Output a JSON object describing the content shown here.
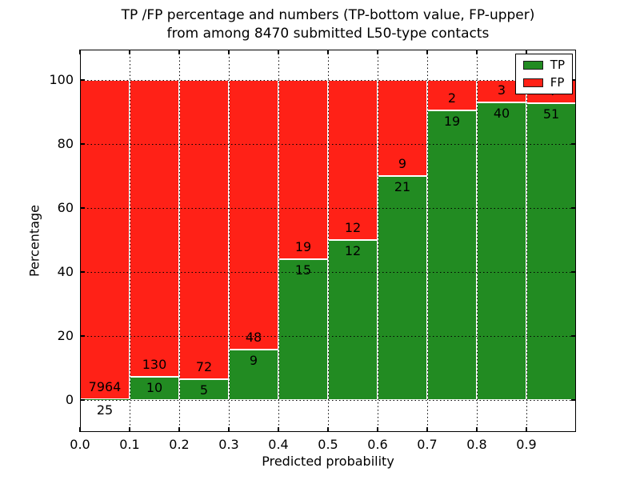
{
  "chart_data": {
    "type": "bar",
    "stacked": true,
    "title": "TP /FP percentage and numbers (TP-bottom value, FP-upper)",
    "subtitle": "from among 8470 submitted L50-type contacts",
    "xlabel": "Predicted probability",
    "ylabel": "Percentage",
    "xlim": [
      0.0,
      1.0
    ],
    "ylim": [
      -10,
      109.5
    ],
    "x_tick_labels": [
      "0.0",
      "0.1",
      "0.2",
      "0.3",
      "0.4",
      "0.5",
      "0.6",
      "0.7",
      "0.8",
      "0.9"
    ],
    "y_tick_values": [
      0,
      20,
      40,
      60,
      80,
      100
    ],
    "grid": "dotted both axes",
    "legend": {
      "position": "upper right",
      "entries": [
        {
          "label": "TP",
          "color": "#228b22"
        },
        {
          "label": "FP",
          "color": "#ff2117"
        }
      ]
    },
    "bins": [
      {
        "range": [
          0.0,
          0.1
        ],
        "tp": 25,
        "fp": 7964,
        "tp_percent": 0.31
      },
      {
        "range": [
          0.1,
          0.2
        ],
        "tp": 10,
        "fp": 130,
        "tp_percent": 7.14
      },
      {
        "range": [
          0.2,
          0.3
        ],
        "tp": 5,
        "fp": 72,
        "tp_percent": 6.49
      },
      {
        "range": [
          0.3,
          0.4
        ],
        "tp": 9,
        "fp": 48,
        "tp_percent": 15.79
      },
      {
        "range": [
          0.4,
          0.5
        ],
        "tp": 15,
        "fp": 19,
        "tp_percent": 44.12
      },
      {
        "range": [
          0.5,
          0.6
        ],
        "tp": 12,
        "fp": 12,
        "tp_percent": 50.0
      },
      {
        "range": [
          0.6,
          0.7
        ],
        "tp": 21,
        "fp": 9,
        "tp_percent": 70.0
      },
      {
        "range": [
          0.7,
          0.8
        ],
        "tp": 19,
        "fp": 2,
        "tp_percent": 90.48
      },
      {
        "range": [
          0.8,
          0.9
        ],
        "tp": 40,
        "fp": 3,
        "tp_percent": 93.02
      },
      {
        "range": [
          0.9,
          1.0
        ],
        "tp": 51,
        "fp": 4,
        "tp_percent": 92.73
      }
    ],
    "colors": {
      "tp": "#228b22",
      "fp": "#ff2117",
      "grid": "#000000",
      "bar_edge": "#ffffff",
      "text": "#000000"
    }
  }
}
